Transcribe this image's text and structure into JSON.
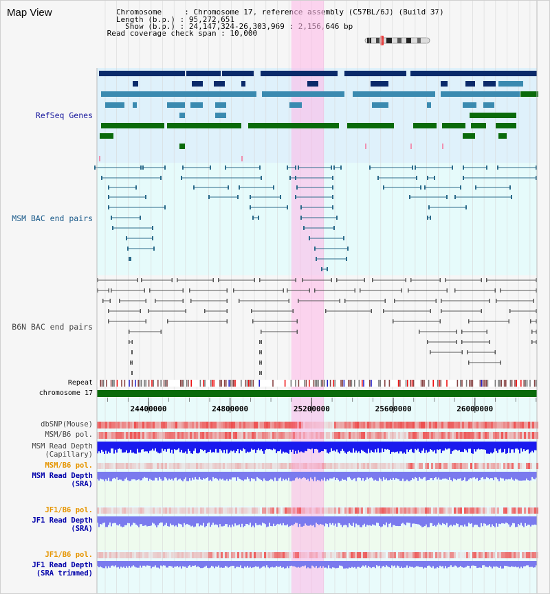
{
  "panel": {
    "title": "Map View",
    "info_lines": [
      "   Chromosome     : Chromosome 17, reference assembly (C57BL/6J) (Build 37)",
      "   Length (b.p.) : 95,272,651",
      "     Show (b.p.) : 24,147,324-26,303,969 : 2,156,646 bp",
      " Read coverage check span : 10,000"
    ]
  },
  "tracks": {
    "refseq": {
      "label": "RefSeq Genes",
      "color": "#1a1a9e"
    },
    "msm_bac": {
      "label": "MSM BAC end pairs",
      "color": "#1a5a8a"
    },
    "b6n_bac": {
      "label": "B6N BAC end pairs",
      "color": "#444444"
    },
    "repeat": {
      "label": "Repeat",
      "color": "#000000"
    },
    "chromosome": {
      "label": "chromosome 17",
      "color": "#000000"
    },
    "dbsnp": {
      "label": "dbSNP(Mouse)",
      "color": "#444444"
    },
    "msm_b6_pol": {
      "label": "MSM/B6 pol.",
      "color": "#444444"
    },
    "msm_depth_cap": {
      "label": "MSM Read Depth\n(Capillary)",
      "color": "#444444"
    },
    "msm_b6_pol2": {
      "label": "MSM/B6 pol.",
      "color": "#e69500"
    },
    "msm_depth_sra": {
      "label": "MSM Read Depth\n(SRA)",
      "color": "#0000aa"
    },
    "jf1_b6_pol": {
      "label": "JF1/B6 pol.",
      "color": "#e69500"
    },
    "jf1_depth_sra": {
      "label": "JF1 Read Depth\n(SRA)",
      "color": "#0000aa"
    },
    "jf1_b6_pol2": {
      "label": "JF1/B6 pol.",
      "color": "#e69500"
    },
    "jf1_depth_trim": {
      "label": "JF1 Read Depth\n(SRA trimmed)",
      "color": "#0000aa"
    }
  },
  "ruler": {
    "ticks": [
      "24400000",
      "24800000",
      "25200000",
      "25600000",
      "26000000"
    ],
    "range": [
      24147324,
      26303969
    ]
  },
  "highlight": {
    "start": 25100000,
    "end": 25260000,
    "color": "#ffb6e8"
  },
  "colors": {
    "refseq_dark": "#0a2a6a",
    "refseq_mid": "#3a8ab0",
    "refseq_green": "#0a6a0a",
    "msm_bac_line": "#2a6a8a",
    "b6n_line": "#555555",
    "chrom_bar": "#0a6a0a",
    "depth_blue": "#1a1aee",
    "depth_light": "#7a7aee",
    "pol_red": "#ee3333"
  }
}
